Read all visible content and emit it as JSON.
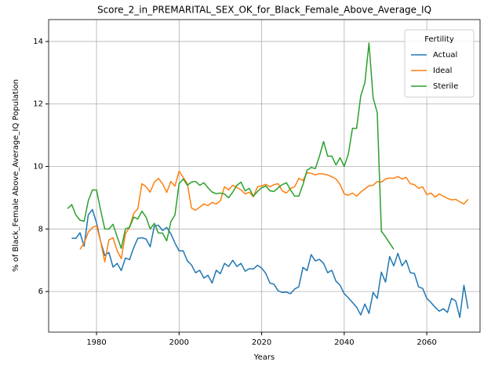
{
  "chart_data": {
    "type": "line",
    "title": "Score_2_in_PREMARITAL_SEX_OK_for_Black_Female_Above_Average_IQ",
    "x_label": "Years",
    "y_label": "% of Black_Female Above_Average_IQ Population",
    "legend_title": "Fertility",
    "legend_position": "upper right",
    "grid": true,
    "xlim": [
      1968.4,
      2072.9
    ],
    "ylim": [
      4.7,
      14.7
    ],
    "xticks": [
      1980,
      2000,
      2020,
      2040,
      2060
    ],
    "yticks": [
      6,
      8,
      10,
      12,
      14
    ],
    "x": [
      1973,
      1974,
      1975,
      1976,
      1977,
      1978,
      1979,
      1980,
      1981,
      1982,
      1983,
      1984,
      1985,
      1986,
      1987,
      1988,
      1989,
      1990,
      1991,
      1992,
      1993,
      1994,
      1995,
      1996,
      1997,
      1998,
      1999,
      2000,
      2001,
      2002,
      2003,
      2004,
      2005,
      2006,
      2007,
      2008,
      2009,
      2010,
      2011,
      2012,
      2013,
      2014,
      2015,
      2016,
      2017,
      2018,
      2019,
      2020,
      2021,
      2022,
      2023,
      2024,
      2025,
      2026,
      2027,
      2028,
      2029,
      2030,
      2031,
      2032,
      2033,
      2034,
      2035,
      2036,
      2037,
      2038,
      2039,
      2040,
      2041,
      2042,
      2043,
      2044,
      2045,
      2046,
      2047,
      2048,
      2049,
      2050,
      2051,
      2052,
      2053,
      2054,
      2055,
      2056,
      2057,
      2058,
      2059,
      2060,
      2061,
      2062,
      2063,
      2064,
      2065,
      2066,
      2067,
      2068,
      2069,
      2070
    ],
    "series": [
      {
        "name": "Actual",
        "color": "#1f77b4",
        "values": [
          null,
          7.7,
          7.7,
          7.88,
          7.45,
          8.45,
          8.62,
          8.2,
          7.6,
          7.15,
          7.25,
          6.78,
          6.9,
          6.67,
          7.07,
          7.02,
          7.4,
          7.7,
          7.72,
          7.68,
          7.43,
          8.1,
          8.12,
          7.95,
          8.05,
          7.85,
          7.55,
          7.3,
          7.3,
          6.98,
          6.85,
          6.6,
          6.68,
          6.43,
          6.52,
          6.27,
          6.68,
          6.57,
          6.9,
          6.8,
          7.0,
          6.8,
          6.9,
          6.65,
          6.73,
          6.72,
          6.84,
          6.75,
          6.58,
          6.27,
          6.23,
          6.02,
          5.97,
          5.98,
          5.93,
          6.08,
          6.15,
          6.77,
          6.67,
          7.18,
          6.98,
          7.03,
          6.9,
          6.6,
          6.68,
          6.33,
          6.2,
          5.93,
          5.8,
          5.65,
          5.5,
          5.25,
          5.6,
          5.3,
          5.97,
          5.78,
          6.62,
          6.3,
          7.12,
          6.82,
          7.22,
          6.82,
          7.0,
          6.6,
          6.58,
          6.15,
          6.1,
          5.78,
          5.65,
          5.5,
          5.37,
          5.45,
          5.33,
          5.78,
          5.7,
          5.17,
          6.2,
          5.45
        ]
      },
      {
        "name": "Ideal",
        "color": "#ff7f0e",
        "values": [
          null,
          null,
          null,
          7.35,
          7.55,
          7.9,
          8.05,
          8.1,
          7.6,
          6.95,
          7.65,
          7.72,
          7.3,
          7.05,
          7.85,
          8.05,
          8.5,
          8.65,
          9.45,
          9.35,
          9.18,
          9.5,
          9.62,
          9.45,
          9.17,
          9.52,
          9.37,
          9.85,
          9.65,
          9.45,
          8.67,
          8.6,
          8.7,
          8.8,
          8.75,
          8.85,
          8.8,
          8.9,
          9.35,
          9.25,
          9.4,
          9.33,
          9.25,
          9.12,
          9.18,
          9.03,
          9.35,
          9.38,
          9.43,
          9.35,
          9.42,
          9.45,
          9.22,
          9.15,
          9.3,
          9.35,
          9.62,
          9.55,
          9.8,
          9.78,
          9.73,
          9.77,
          9.76,
          9.73,
          9.67,
          9.6,
          9.42,
          9.12,
          9.08,
          9.15,
          9.05,
          9.18,
          9.28,
          9.38,
          9.4,
          9.52,
          9.5,
          9.6,
          9.63,
          9.62,
          9.68,
          9.6,
          9.65,
          9.45,
          9.42,
          9.3,
          9.35,
          9.1,
          9.15,
          9.02,
          9.12,
          9.05,
          8.98,
          8.93,
          8.95,
          8.87,
          8.8,
          8.95
        ]
      },
      {
        "name": "Sterile",
        "color": "#2ca02c",
        "values": [
          8.65,
          8.78,
          8.45,
          8.28,
          8.25,
          8.9,
          9.25,
          9.25,
          8.6,
          8.0,
          8.0,
          8.15,
          7.75,
          7.38,
          8.0,
          8.05,
          8.38,
          8.32,
          8.57,
          8.38,
          8.0,
          8.18,
          7.87,
          7.87,
          7.62,
          8.23,
          8.45,
          9.45,
          9.6,
          9.4,
          9.5,
          9.52,
          9.4,
          9.48,
          9.32,
          9.18,
          9.13,
          9.15,
          9.12,
          9.0,
          9.18,
          9.4,
          9.5,
          9.22,
          9.3,
          9.05,
          9.2,
          9.32,
          9.38,
          9.22,
          9.2,
          9.32,
          9.42,
          9.48,
          9.25,
          9.05,
          9.05,
          9.42,
          9.88,
          9.97,
          9.93,
          10.33,
          10.8,
          10.33,
          10.33,
          10.05,
          10.28,
          10.0,
          10.4,
          11.22,
          11.22,
          12.25,
          12.68,
          13.95,
          12.2,
          11.72,
          7.93,
          7.75,
          7.55,
          7.35,
          null,
          null,
          null,
          null,
          null,
          null,
          null,
          null,
          null,
          null,
          null,
          null,
          null,
          null,
          null,
          null,
          null,
          null
        ]
      }
    ]
  }
}
